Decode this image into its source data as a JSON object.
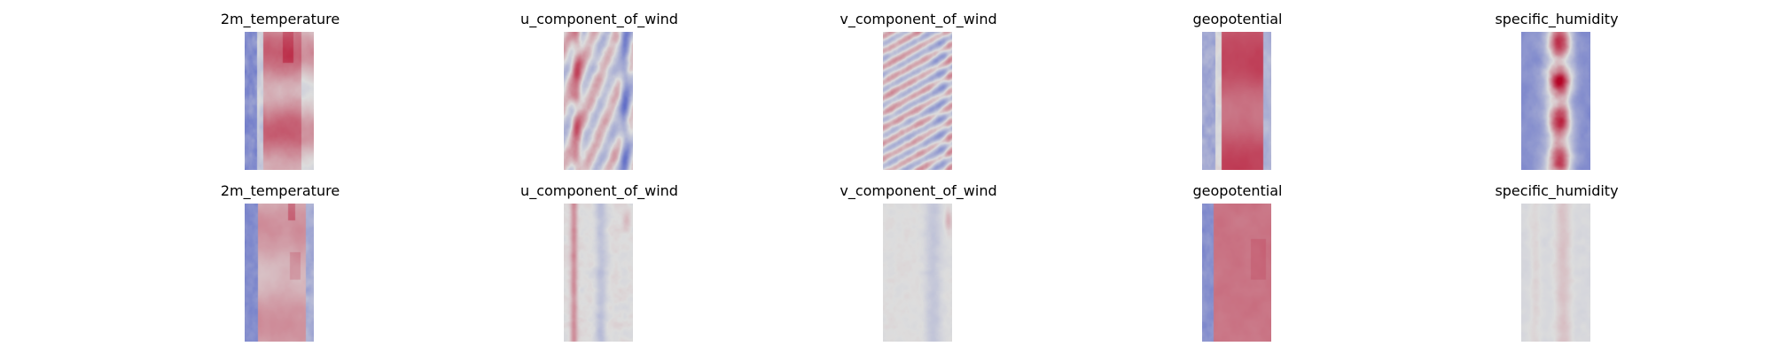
{
  "chart_data": {
    "type": "heatmap",
    "colormap": "coolwarm",
    "colormap_colors": [
      "#3b4cc0",
      "#dddddd",
      "#b40426"
    ],
    "grid": false,
    "axes": "off",
    "rows": [
      {
        "panels": [
          {
            "title": "2m_temperature",
            "field": "temperature_row0",
            "palette": "coolwarm"
          },
          {
            "title": "u_component_of_wind",
            "field": "uwind_row0",
            "palette": "coolwarm"
          },
          {
            "title": "v_component_of_wind",
            "field": "vwind_row0",
            "palette": "coolwarm"
          },
          {
            "title": "geopotential",
            "field": "geopotential_row0",
            "palette": "coolwarm"
          },
          {
            "title": "specific_humidity",
            "field": "humidity_row0",
            "palette": "coolwarm"
          }
        ]
      },
      {
        "panels": [
          {
            "title": "2m_temperature",
            "field": "temperature_row1",
            "palette": "coolwarm"
          },
          {
            "title": "u_component_of_wind",
            "field": "uwind_row1",
            "palette": "coolwarm"
          },
          {
            "title": "v_component_of_wind",
            "field": "vwind_row1",
            "palette": "coolwarm"
          },
          {
            "title": "geopotential",
            "field": "geopotential_row1",
            "palette": "coolwarm"
          },
          {
            "title": "specific_humidity",
            "field": "humidity_row1",
            "palette": "coolwarm"
          }
        ]
      }
    ]
  }
}
